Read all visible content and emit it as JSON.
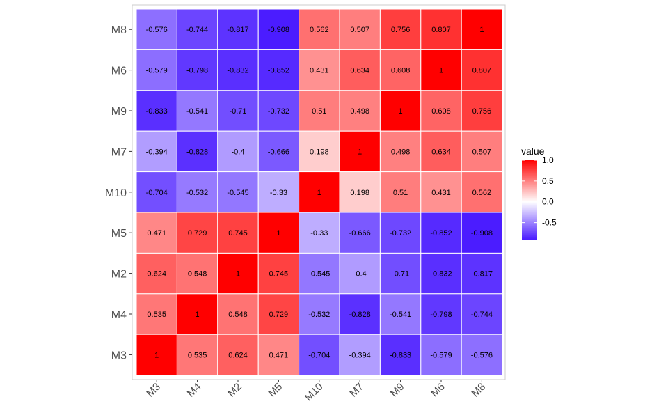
{
  "chart_data": {
    "type": "heatmap",
    "title": "",
    "xlabel": "",
    "ylabel": "",
    "x_categories": [
      "M3",
      "M4",
      "M2",
      "M5",
      "M10",
      "M7",
      "M9",
      "M6",
      "M8"
    ],
    "y_categories_top_to_bottom": [
      "M8",
      "M6",
      "M9",
      "M7",
      "M10",
      "M5",
      "M2",
      "M4",
      "M3"
    ],
    "values": [
      [
        -0.576,
        -0.744,
        -0.817,
        -0.908,
        0.562,
        0.507,
        0.756,
        0.807,
        1
      ],
      [
        -0.579,
        -0.798,
        -0.832,
        -0.852,
        0.431,
        0.634,
        0.608,
        1,
        0.807
      ],
      [
        -0.833,
        -0.541,
        -0.71,
        -0.732,
        0.51,
        0.498,
        1,
        0.608,
        0.756
      ],
      [
        -0.394,
        -0.828,
        -0.4,
        -0.666,
        0.198,
        1,
        0.498,
        0.634,
        0.507
      ],
      [
        -0.704,
        -0.532,
        -0.545,
        -0.33,
        1,
        0.198,
        0.51,
        0.431,
        0.562
      ],
      [
        0.471,
        0.729,
        0.745,
        1,
        -0.33,
        -0.666,
        -0.732,
        -0.852,
        -0.908
      ],
      [
        0.624,
        0.548,
        1,
        0.745,
        -0.545,
        -0.4,
        -0.71,
        -0.832,
        -0.817
      ],
      [
        0.535,
        1,
        0.548,
        0.729,
        -0.532,
        -0.828,
        -0.541,
        -0.798,
        -0.744
      ],
      [
        1,
        0.535,
        0.624,
        0.471,
        -0.704,
        -0.394,
        -0.833,
        -0.579,
        -0.576
      ]
    ],
    "legend": {
      "title": "value",
      "ticks": [
        1.0,
        0.5,
        0.0,
        -0.5
      ],
      "tick_labels": [
        "1.0",
        "0.5",
        "0.0",
        "-0.5"
      ],
      "range": [
        -0.908,
        1
      ]
    },
    "colors": {
      "low": "#4b1cff",
      "mid": "#ffffff",
      "high": "#ff0000",
      "grid_line": "#ffffff",
      "panel_border": "#cccccc"
    }
  }
}
